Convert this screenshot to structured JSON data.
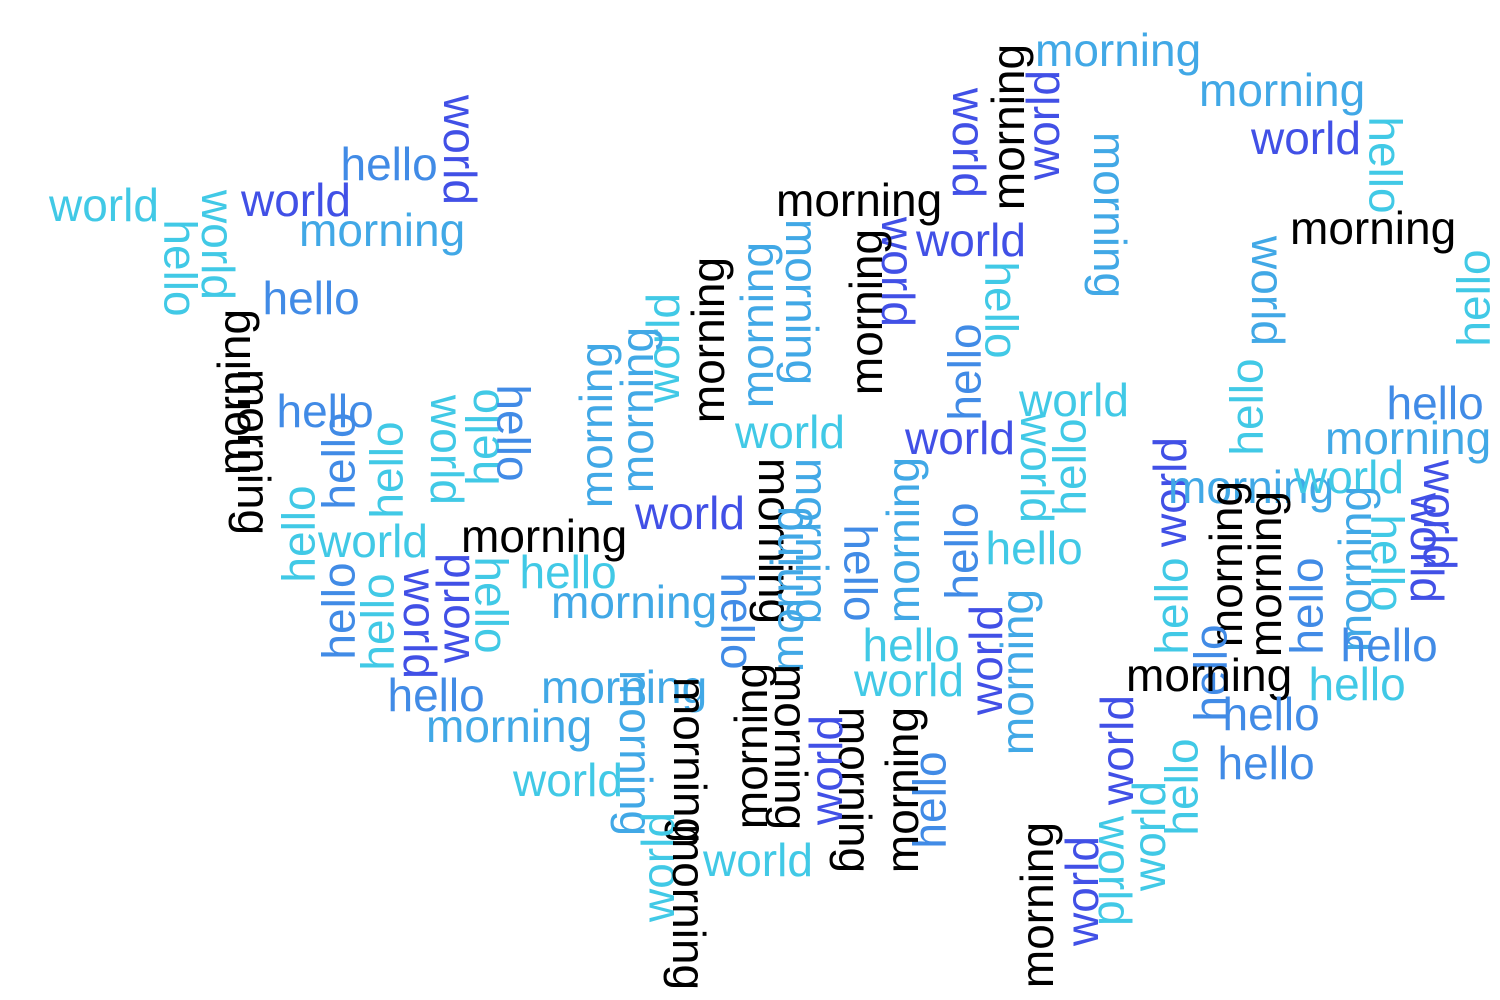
{
  "palette": {
    "black": "#000000",
    "indigo": "#4150e6",
    "blue": "#418be6",
    "sky": "#41a8e6",
    "cyan": "#41c9e6"
  },
  "words": [
    {
      "text": "morning",
      "color": "sky",
      "vertical": false
    },
    {
      "text": "morning",
      "color": "sky",
      "vertical": false
    },
    {
      "text": "world",
      "color": "indigo",
      "vertical": false
    },
    {
      "text": "hello",
      "color": "cyan",
      "vertical": true
    },
    {
      "text": "world",
      "color": "indigo",
      "vertical": true
    },
    {
      "text": "morning",
      "color": "black",
      "vertical": true
    },
    {
      "text": "world",
      "color": "indigo",
      "vertical": true
    },
    {
      "text": "hello",
      "color": "blue",
      "vertical": false
    },
    {
      "text": "world",
      "color": "indigo",
      "vertical": true
    },
    {
      "text": "world",
      "color": "cyan",
      "vertical": false
    },
    {
      "text": "world",
      "color": "indigo",
      "vertical": false
    },
    {
      "text": "morning",
      "color": "sky",
      "vertical": false
    },
    {
      "text": "world",
      "color": "cyan",
      "vertical": true
    },
    {
      "text": "hello",
      "color": "cyan",
      "vertical": true
    },
    {
      "text": "hello",
      "color": "blue",
      "vertical": false
    },
    {
      "text": "morning",
      "color": "black",
      "vertical": false
    },
    {
      "text": "morning",
      "color": "sky",
      "vertical": true
    },
    {
      "text": "morning",
      "color": "black",
      "vertical": false
    },
    {
      "text": "world",
      "color": "indigo",
      "vertical": false
    },
    {
      "text": "world",
      "color": "indigo",
      "vertical": true
    },
    {
      "text": "morning",
      "color": "black",
      "vertical": true
    },
    {
      "text": "hello",
      "color": "cyan",
      "vertical": true
    },
    {
      "text": "world",
      "color": "sky",
      "vertical": true
    },
    {
      "text": "hello",
      "color": "cyan",
      "vertical": true
    },
    {
      "text": "morning",
      "color": "sky",
      "vertical": true
    },
    {
      "text": "morning",
      "color": "sky",
      "vertical": true
    },
    {
      "text": "morning",
      "color": "black",
      "vertical": true
    },
    {
      "text": "world",
      "color": "cyan",
      "vertical": true
    },
    {
      "text": "morning",
      "color": "sky",
      "vertical": true
    },
    {
      "text": "morning",
      "color": "sky",
      "vertical": true
    },
    {
      "text": "hello",
      "color": "blue",
      "vertical": true
    },
    {
      "text": "morning",
      "color": "black",
      "vertical": true
    },
    {
      "text": "morning",
      "color": "black",
      "vertical": true
    },
    {
      "text": "hello",
      "color": "blue",
      "vertical": false
    },
    {
      "text": "hello",
      "color": "blue",
      "vertical": true
    },
    {
      "text": "hello",
      "color": "cyan",
      "vertical": true
    },
    {
      "text": "hello",
      "color": "cyan",
      "vertical": true
    },
    {
      "text": "world",
      "color": "cyan",
      "vertical": true
    },
    {
      "text": "hello",
      "color": "cyan",
      "vertical": true
    },
    {
      "text": "hello",
      "color": "blue",
      "vertical": true
    },
    {
      "text": "world",
      "color": "cyan",
      "vertical": false
    },
    {
      "text": "morning",
      "color": "black",
      "vertical": false
    },
    {
      "text": "world",
      "color": "indigo",
      "vertical": false
    },
    {
      "text": "world",
      "color": "cyan",
      "vertical": false
    },
    {
      "text": "morning",
      "color": "sky",
      "vertical": false
    },
    {
      "text": "world",
      "color": "indigo",
      "vertical": false
    },
    {
      "text": "world",
      "color": "cyan",
      "vertical": true
    },
    {
      "text": "hello",
      "color": "cyan",
      "vertical": true
    },
    {
      "text": "world",
      "color": "indigo",
      "vertical": true
    },
    {
      "text": "hello",
      "color": "cyan",
      "vertical": true
    },
    {
      "text": "morning",
      "color": "sky",
      "vertical": false
    },
    {
      "text": "hello",
      "color": "blue",
      "vertical": false
    },
    {
      "text": "world",
      "color": "cyan",
      "vertical": false
    },
    {
      "text": "world",
      "color": "indigo",
      "vertical": true
    },
    {
      "text": "world",
      "color": "indigo",
      "vertical": true
    },
    {
      "text": "hello",
      "color": "cyan",
      "vertical": true
    },
    {
      "text": "morning",
      "color": "black",
      "vertical": true
    },
    {
      "text": "morning",
      "color": "black",
      "vertical": true
    },
    {
      "text": "hello",
      "color": "cyan",
      "vertical": false
    },
    {
      "text": "morning",
      "color": "sky",
      "vertical": false
    },
    {
      "text": "morning",
      "color": "black",
      "vertical": true
    },
    {
      "text": "morning",
      "color": "sky",
      "vertical": true
    },
    {
      "text": "hello",
      "color": "blue",
      "vertical": true
    },
    {
      "text": "morning",
      "color": "sky",
      "vertical": true
    },
    {
      "text": "hello",
      "color": "blue",
      "vertical": true
    },
    {
      "text": "hello",
      "color": "blue",
      "vertical": true
    },
    {
      "text": "hello",
      "color": "cyan",
      "vertical": true
    },
    {
      "text": "world",
      "color": "indigo",
      "vertical": true
    },
    {
      "text": "world",
      "color": "indigo",
      "vertical": true
    },
    {
      "text": "hello",
      "color": "cyan",
      "vertical": true
    },
    {
      "text": "hello",
      "color": "cyan",
      "vertical": false
    },
    {
      "text": "morning",
      "color": "sky",
      "vertical": false
    },
    {
      "text": "hello",
      "color": "blue",
      "vertical": true
    },
    {
      "text": "hello",
      "color": "cyan",
      "vertical": true
    },
    {
      "text": "world",
      "color": "cyan",
      "vertical": false
    },
    {
      "text": "hello",
      "color": "blue",
      "vertical": true
    },
    {
      "text": "morning",
      "color": "sky",
      "vertical": true
    },
    {
      "text": "world",
      "color": "indigo",
      "vertical": true
    },
    {
      "text": "morning",
      "color": "sky",
      "vertical": true
    },
    {
      "text": "hello",
      "color": "cyan",
      "vertical": false
    },
    {
      "text": "world",
      "color": "cyan",
      "vertical": false
    },
    {
      "text": "hello",
      "color": "blue",
      "vertical": true
    },
    {
      "text": "morning",
      "color": "black",
      "vertical": true
    },
    {
      "text": "morning",
      "color": "black",
      "vertical": true
    },
    {
      "text": "morning",
      "color": "black",
      "vertical": false
    },
    {
      "text": "world",
      "color": "indigo",
      "vertical": true
    },
    {
      "text": "hello",
      "color": "blue",
      "vertical": false
    },
    {
      "text": "hello",
      "color": "cyan",
      "vertical": false
    },
    {
      "text": "hello",
      "color": "blue",
      "vertical": false
    },
    {
      "text": "morning",
      "color": "sky",
      "vertical": false
    },
    {
      "text": "morning",
      "color": "sky",
      "vertical": false
    },
    {
      "text": "hello",
      "color": "blue",
      "vertical": false
    },
    {
      "text": "world",
      "color": "cyan",
      "vertical": false
    },
    {
      "text": "hello",
      "color": "blue",
      "vertical": true
    },
    {
      "text": "morning",
      "color": "sky",
      "vertical": true
    },
    {
      "text": "morning",
      "color": "black",
      "vertical": true
    },
    {
      "text": "morning",
      "color": "black",
      "vertical": true
    },
    {
      "text": "hello",
      "color": "blue",
      "vertical": true
    },
    {
      "text": "world",
      "color": "indigo",
      "vertical": true
    },
    {
      "text": "morning",
      "color": "black",
      "vertical": true
    },
    {
      "text": "morning",
      "color": "black",
      "vertical": true
    },
    {
      "text": "world",
      "color": "indigo",
      "vertical": true
    },
    {
      "text": "world",
      "color": "cyan",
      "vertical": true
    },
    {
      "text": "hello",
      "color": "cyan",
      "vertical": true
    },
    {
      "text": "world",
      "color": "cyan",
      "vertical": false
    },
    {
      "text": "world",
      "color": "cyan",
      "vertical": true
    },
    {
      "text": "world",
      "color": "cyan",
      "vertical": true
    },
    {
      "text": "morning",
      "color": "black",
      "vertical": true
    },
    {
      "text": "morning",
      "color": "sky",
      "vertical": true
    },
    {
      "text": "world",
      "color": "indigo",
      "vertical": true
    },
    {
      "text": "hello",
      "color": "cyan",
      "vertical": true
    },
    {
      "text": "world",
      "color": "cyan",
      "vertical": true
    },
    {
      "text": "morning",
      "color": "black",
      "vertical": true
    },
    {
      "text": "world",
      "color": "indigo",
      "vertical": true
    }
  ]
}
